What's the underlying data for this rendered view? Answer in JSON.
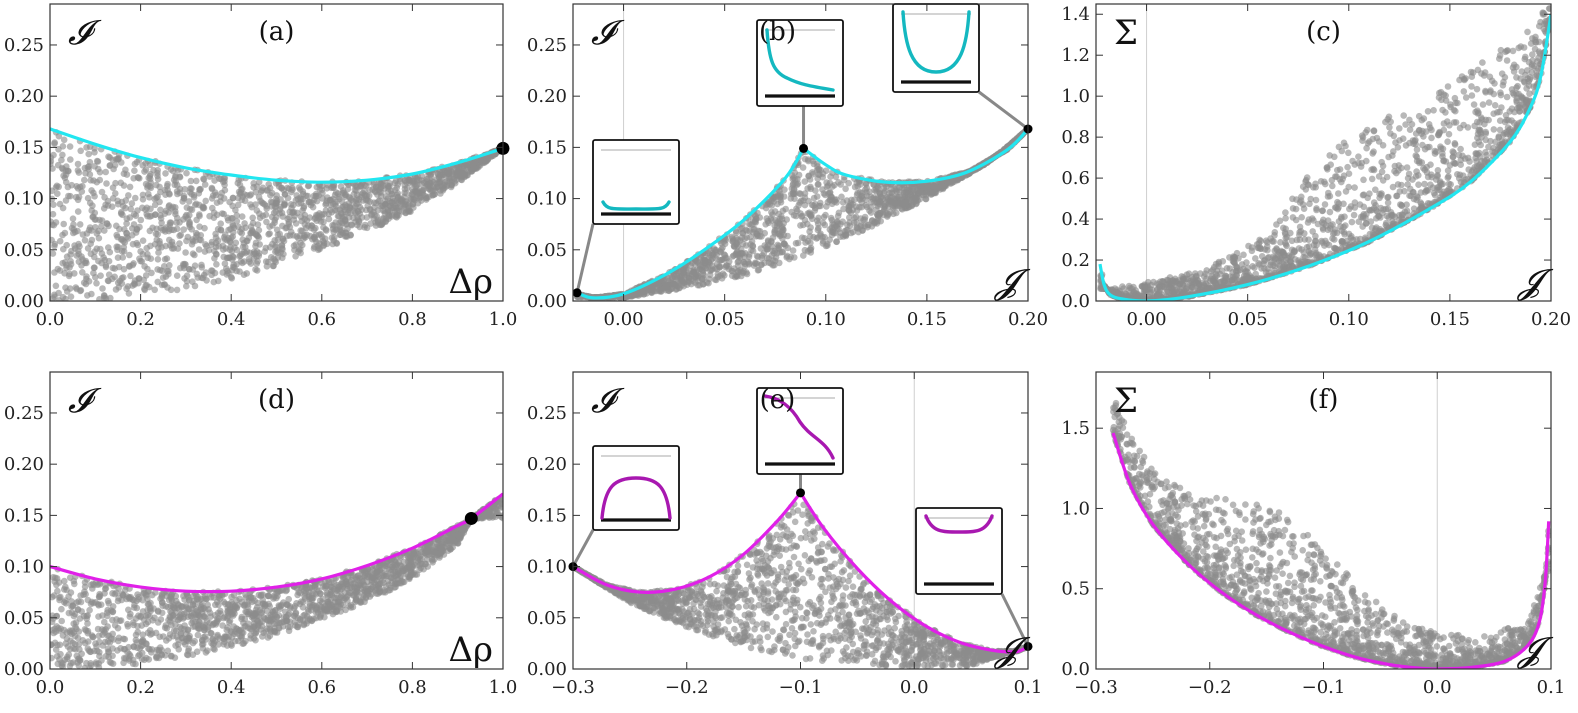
{
  "colors": {
    "cyan": "#22e6f0",
    "cyan_dark": "#14b8c0",
    "magenta": "#e020e8",
    "magenta_dark": "#a818b0",
    "scatter": "#8c8c8c",
    "frame": "#333333",
    "refline": "#cfcfcf"
  },
  "chart_data": [
    {
      "id": "a",
      "type": "scatter",
      "title": "(a)",
      "xlabel": "Δρ",
      "ylabel": "𝓘",
      "xlim": [
        0,
        1
      ],
      "ylim": [
        0,
        0.29
      ],
      "xticks": [
        0,
        0.2,
        0.4,
        0.6,
        0.8,
        1.0
      ],
      "xtick_labels": [
        "0.0",
        "0.2",
        "0.4",
        "0.6",
        "0.8",
        "1.0"
      ],
      "yticks": [
        0,
        0.05,
        0.1,
        0.15,
        0.2,
        0.25
      ],
      "ytick_labels": [
        "0.00",
        "0.05",
        "0.10",
        "0.15",
        "0.20",
        "0.25"
      ],
      "curve": {
        "color": "cyan",
        "x": [
          0,
          0.1,
          0.2,
          0.3,
          0.4,
          0.5,
          0.6,
          0.7,
          0.8,
          0.9,
          1.0
        ],
        "y": [
          0.168,
          0.153,
          0.14,
          0.13,
          0.123,
          0.118,
          0.116,
          0.118,
          0.124,
          0.135,
          0.149
        ]
      },
      "region_lower": {
        "x": [
          0,
          0.1,
          0.2,
          0.3,
          0.4,
          0.5,
          0.6,
          0.7,
          0.8,
          0.9,
          1.0
        ],
        "y": [
          0.0,
          0.001,
          0.005,
          0.012,
          0.022,
          0.035,
          0.05,
          0.068,
          0.088,
          0.115,
          0.149
        ]
      },
      "points": [
        {
          "x": 1.0,
          "y": 0.149,
          "size": "large"
        }
      ]
    },
    {
      "id": "b",
      "type": "scatter",
      "title": "(b)",
      "xlabel": "𝓙",
      "ylabel": "𝓘",
      "xlim": [
        -0.025,
        0.2
      ],
      "ylim": [
        0,
        0.29
      ],
      "xticks": [
        0,
        0.05,
        0.1,
        0.15,
        0.2
      ],
      "xtick_labels": [
        "0.00",
        "0.05",
        "0.10",
        "0.15",
        "0.20"
      ],
      "yticks": [
        0,
        0.05,
        0.1,
        0.15,
        0.2,
        0.25
      ],
      "ytick_labels": [
        "0.00",
        "0.05",
        "0.10",
        "0.15",
        "0.20",
        "0.25"
      ],
      "vline": 0,
      "curves": [
        {
          "color": "cyan",
          "x": [
            -0.023,
            -0.015,
            0.0,
            0.02,
            0.04,
            0.06,
            0.08,
            0.089
          ],
          "y": [
            0.008,
            0.003,
            0.007,
            0.025,
            0.05,
            0.08,
            0.12,
            0.149
          ]
        },
        {
          "color": "cyan",
          "x": [
            0.089,
            0.1,
            0.11,
            0.13,
            0.15,
            0.17,
            0.19,
            0.2
          ],
          "y": [
            0.149,
            0.133,
            0.123,
            0.116,
            0.117,
            0.126,
            0.148,
            0.168
          ]
        }
      ],
      "region_lower": {
        "x": [
          -0.023,
          0.0,
          0.03,
          0.06,
          0.09,
          0.12,
          0.15,
          0.18,
          0.2
        ],
        "y": [
          0.004,
          0.003,
          0.012,
          0.025,
          0.045,
          0.07,
          0.1,
          0.135,
          0.168
        ]
      },
      "points": [
        {
          "x": -0.023,
          "y": 0.008
        },
        {
          "x": 0.089,
          "y": 0.149
        },
        {
          "x": 0.2,
          "y": 0.168
        }
      ],
      "insets": [
        {
          "anchor": [
            -0.023,
            0.008
          ],
          "shape": "flat"
        },
        {
          "anchor": [
            0.089,
            0.149
          ],
          "shape": "decay"
        },
        {
          "anchor": [
            0.2,
            0.168
          ],
          "shape": "well"
        }
      ]
    },
    {
      "id": "c",
      "type": "scatter",
      "title": "(c)",
      "xlabel": "𝓙",
      "ylabel": "Σ",
      "xlim": [
        -0.025,
        0.2
      ],
      "ylim": [
        0,
        1.45
      ],
      "xticks": [
        0,
        0.05,
        0.1,
        0.15,
        0.2
      ],
      "xtick_labels": [
        "0.00",
        "0.05",
        "0.10",
        "0.15",
        "0.20"
      ],
      "yticks": [
        0,
        0.2,
        0.4,
        0.6,
        0.8,
        1.0,
        1.2,
        1.4
      ],
      "ytick_labels": [
        "0.0",
        "0.2",
        "0.4",
        "0.6",
        "0.8",
        "1.0",
        "1.2",
        "1.4"
      ],
      "vline": 0,
      "curve": {
        "color": "cyan",
        "x": [
          -0.023,
          -0.021,
          -0.018,
          -0.012,
          0.0,
          0.02,
          0.05,
          0.08,
          0.11,
          0.14,
          0.16,
          0.18,
          0.19,
          0.195,
          0.2
        ],
        "y": [
          0.18,
          0.08,
          0.03,
          0.01,
          0.0,
          0.02,
          0.08,
          0.17,
          0.29,
          0.45,
          0.58,
          0.78,
          0.95,
          1.1,
          1.4
        ]
      },
      "region_upper": {
        "x": [
          -0.02,
          0.0,
          0.03,
          0.06,
          0.08,
          0.1,
          0.13,
          0.16,
          0.19,
          0.2
        ],
        "y": [
          0.06,
          0.09,
          0.16,
          0.32,
          0.62,
          0.8,
          0.95,
          1.12,
          1.35,
          1.45
        ]
      }
    },
    {
      "id": "d",
      "type": "scatter",
      "title": "(d)",
      "xlabel": "Δρ",
      "ylabel": "𝓘",
      "xlim": [
        0,
        1
      ],
      "ylim": [
        0,
        0.29
      ],
      "xticks": [
        0,
        0.2,
        0.4,
        0.6,
        0.8,
        1.0
      ],
      "xtick_labels": [
        "0.0",
        "0.2",
        "0.4",
        "0.6",
        "0.8",
        "1.0"
      ],
      "yticks": [
        0,
        0.05,
        0.1,
        0.15,
        0.2,
        0.25
      ],
      "ytick_labels": [
        "0.00",
        "0.05",
        "0.10",
        "0.15",
        "0.20",
        "0.25"
      ],
      "curve": {
        "color": "magenta",
        "x": [
          0,
          0.1,
          0.2,
          0.3,
          0.4,
          0.5,
          0.6,
          0.7,
          0.8,
          0.9,
          0.93,
          1.0
        ],
        "y": [
          0.1,
          0.088,
          0.08,
          0.076,
          0.076,
          0.08,
          0.088,
          0.101,
          0.118,
          0.14,
          0.147,
          0.171
        ]
      },
      "region_lower": {
        "x": [
          0,
          0.1,
          0.2,
          0.3,
          0.4,
          0.5,
          0.6,
          0.7,
          0.8,
          0.9,
          0.93
        ],
        "y": [
          0.0,
          0.001,
          0.005,
          0.012,
          0.021,
          0.033,
          0.048,
          0.066,
          0.088,
          0.122,
          0.147
        ]
      },
      "points": [
        {
          "x": 0.93,
          "y": 0.147,
          "size": "large"
        }
      ]
    },
    {
      "id": "e",
      "type": "scatter",
      "title": "(e)",
      "xlabel": "𝓙",
      "ylabel": "𝓘",
      "xlim": [
        -0.3,
        0.1
      ],
      "ylim": [
        0,
        0.29
      ],
      "xticks": [
        -0.3,
        -0.2,
        -0.1,
        0.0,
        0.1
      ],
      "xtick_labels": [
        "−0.3",
        "−0.2",
        "−0.1",
        "0.0",
        "0.1"
      ],
      "yticks": [
        0,
        0.05,
        0.1,
        0.15,
        0.2,
        0.25
      ],
      "ytick_labels": [
        "0.00",
        "0.05",
        "0.10",
        "0.15",
        "0.20",
        "0.25"
      ],
      "vline": 0,
      "curves": [
        {
          "color": "magenta",
          "x": [
            -0.3,
            -0.27,
            -0.24,
            -0.21,
            -0.18,
            -0.15,
            -0.12,
            -0.1
          ],
          "y": [
            0.1,
            0.082,
            0.075,
            0.078,
            0.09,
            0.112,
            0.145,
            0.172
          ]
        },
        {
          "color": "magenta",
          "x": [
            -0.1,
            -0.08,
            -0.05,
            -0.02,
            0.01,
            0.04,
            0.07,
            0.09,
            0.1
          ],
          "y": [
            0.172,
            0.138,
            0.098,
            0.066,
            0.042,
            0.026,
            0.018,
            0.017,
            0.022
          ]
        }
      ],
      "region_lower": {
        "x": [
          -0.3,
          -0.25,
          -0.2,
          -0.15,
          -0.1,
          -0.05,
          0.0,
          0.05,
          0.1
        ],
        "y": [
          0.1,
          0.065,
          0.04,
          0.022,
          0.01,
          0.004,
          0.002,
          0.003,
          0.022
        ]
      },
      "points": [
        {
          "x": -0.3,
          "y": 0.1
        },
        {
          "x": -0.1,
          "y": 0.172
        },
        {
          "x": 0.1,
          "y": 0.022
        }
      ],
      "insets": [
        {
          "anchor": [
            -0.3,
            0.1
          ],
          "shape": "dome"
        },
        {
          "anchor": [
            -0.1,
            0.172
          ],
          "shape": "step"
        },
        {
          "anchor": [
            0.1,
            0.022
          ],
          "shape": "shallow"
        }
      ]
    },
    {
      "id": "f",
      "type": "scatter",
      "title": "(f)",
      "xlabel": "𝓙",
      "ylabel": "Σ",
      "xlim": [
        -0.3,
        0.1
      ],
      "ylim": [
        0,
        1.85
      ],
      "xticks": [
        -0.3,
        -0.2,
        -0.1,
        0.0,
        0.1
      ],
      "xtick_labels": [
        "−0.3",
        "−0.2",
        "−0.1",
        "0.0",
        "0.1"
      ],
      "yticks": [
        0,
        0.5,
        1.0,
        1.5
      ],
      "ytick_labels": [
        "0.0",
        "0.5",
        "1.0",
        "1.5"
      ],
      "vline": 0,
      "curve": {
        "color": "magenta",
        "x": [
          -0.285,
          -0.27,
          -0.25,
          -0.22,
          -0.19,
          -0.16,
          -0.13,
          -0.1,
          -0.07,
          -0.04,
          -0.02,
          0.0,
          0.03,
          0.06,
          0.08,
          0.09,
          0.095,
          0.098
        ],
        "y": [
          1.47,
          1.15,
          0.9,
          0.66,
          0.48,
          0.34,
          0.23,
          0.14,
          0.07,
          0.025,
          0.008,
          0.0,
          0.01,
          0.05,
          0.15,
          0.3,
          0.55,
          0.92
        ]
      },
      "region_upper": {
        "x": [
          -0.29,
          -0.27,
          -0.25,
          -0.22,
          -0.18,
          -0.14,
          -0.1,
          -0.06,
          -0.03,
          0.0,
          0.04,
          0.08,
          0.095
        ],
        "y": [
          1.8,
          1.45,
          1.25,
          1.1,
          1.05,
          1.0,
          0.75,
          0.45,
          0.3,
          0.22,
          0.2,
          0.3,
          0.6
        ]
      }
    }
  ]
}
